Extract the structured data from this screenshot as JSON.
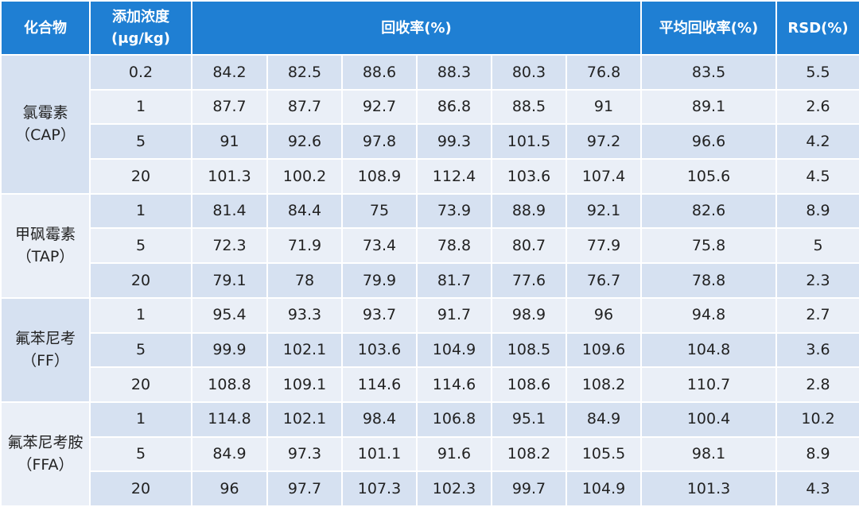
{
  "header": [
    "化合物",
    [
      "添加浓度",
      "(μg/kg)"
    ],
    "回收率(%)",
    "平均回收率(%)",
    "RSD(%)"
  ],
  "groups": [
    {
      "name": [
        "氯霉素",
        "（CAP）"
      ],
      "rows": [
        [
          0.2,
          84.2,
          82.5,
          88.6,
          88.3,
          80.3,
          76.8,
          83.5,
          5.5
        ],
        [
          1,
          87.7,
          87.7,
          92.7,
          86.8,
          88.5,
          91,
          89.1,
          2.6
        ],
        [
          5,
          91,
          92.6,
          97.8,
          99.3,
          101.5,
          97.2,
          96.6,
          4.2
        ],
        [
          20,
          101.3,
          100.2,
          108.9,
          112.4,
          103.6,
          107.4,
          105.6,
          4.5
        ]
      ]
    },
    {
      "name": [
        "甲砜霉素",
        "（TAP）"
      ],
      "rows": [
        [
          1,
          81.4,
          84.4,
          75,
          73.9,
          88.9,
          92.1,
          82.6,
          8.9
        ],
        [
          5,
          72.3,
          71.9,
          73.4,
          78.8,
          80.7,
          77.9,
          75.8,
          5
        ],
        [
          20,
          79.1,
          78,
          79.9,
          81.7,
          77.6,
          76.7,
          78.8,
          2.3
        ]
      ]
    },
    {
      "name": [
        "氟苯尼考",
        "（FF）"
      ],
      "rows": [
        [
          1,
          95.4,
          93.3,
          93.7,
          91.7,
          98.9,
          96,
          94.8,
          2.7
        ],
        [
          5,
          99.9,
          102.1,
          103.6,
          104.9,
          108.5,
          109.6,
          104.8,
          3.6
        ],
        [
          20,
          108.8,
          109.1,
          114.6,
          114.6,
          108.6,
          108.2,
          110.7,
          2.8
        ]
      ]
    },
    {
      "name": [
        "氟苯尼考胺",
        "（FFA）"
      ],
      "rows": [
        [
          1,
          114.8,
          102.1,
          98.4,
          106.8,
          95.1,
          84.9,
          100.4,
          10.2
        ],
        [
          5,
          84.9,
          97.3,
          101.1,
          91.6,
          108.2,
          105.5,
          98.1,
          8.9
        ],
        [
          20,
          96,
          97.7,
          107.3,
          102.3,
          99.7,
          104.9,
          101.3,
          4.3
        ]
      ]
    }
  ]
}
